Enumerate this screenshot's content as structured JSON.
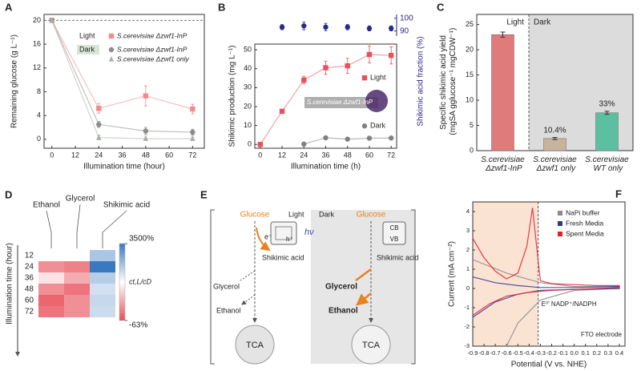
{
  "chart_data": [
    {
      "type": "line",
      "panel_label": "A",
      "xlabel": "Illumination time (hour)",
      "ylabel": "Remaining glucose (g L⁻¹)",
      "x": [
        0,
        24,
        48,
        72
      ],
      "xlim": [
        -4,
        78
      ],
      "xticks": [
        0,
        12,
        24,
        36,
        48,
        60,
        72
      ],
      "ylim": [
        -1.5,
        21
      ],
      "yticks": [
        0,
        4,
        8,
        12,
        16,
        20
      ],
      "hline": 20,
      "legend_groups": [
        {
          "label": "Light",
          "series": [
            0
          ]
        },
        {
          "label": "Dark",
          "series": [
            1,
            2
          ]
        }
      ],
      "series": [
        {
          "name": "S.cerevisiae Δzwf1-InP",
          "color": "#f28b8b",
          "marker": "square",
          "values": [
            20,
            5.2,
            7.3,
            5.1
          ],
          "errors": [
            0,
            0.8,
            1.7,
            0.8
          ]
        },
        {
          "name": "S.cerevisiae Δzwf1-InP",
          "color": "#8c8c8c",
          "marker": "circle",
          "values": [
            20,
            2.5,
            1.4,
            1.2
          ],
          "errors": [
            0,
            0.5,
            0.6,
            0.5
          ]
        },
        {
          "name": "S.cerevisiae Δzwf1 only",
          "color": "#a8b0a8",
          "marker": "triangle",
          "values": [
            20,
            0.3,
            0.1,
            0.1
          ],
          "errors": [
            0,
            0.4,
            0.3,
            0.3
          ]
        }
      ]
    },
    {
      "type": "line",
      "panel_label": "B",
      "xlabel": "Illumination time (h)",
      "ylabel": "Shikimic production (mg L⁻¹)",
      "y2label": "Shikimic acid fraction (%)",
      "annotation": "S.cerevisiae Δzwf1-InP",
      "x": [
        0,
        12,
        24,
        36,
        48,
        60,
        72
      ],
      "xlim": [
        -3,
        75
      ],
      "xticks": [
        0,
        12,
        24,
        36,
        48,
        60,
        72
      ],
      "ylim": [
        -2,
        53
      ],
      "yticks": [
        0,
        10,
        20,
        30,
        40,
        50
      ],
      "y2lim": [
        86,
        103
      ],
      "y2ticks": [
        90,
        100
      ],
      "legend": "inline",
      "series": [
        {
          "name": "Light",
          "color": "#e8505a",
          "marker": "square",
          "values": [
            0,
            17.5,
            34,
            40.5,
            41.5,
            47.5,
            47
          ],
          "errors": [
            0,
            0.6,
            2,
            3.5,
            4,
            4.5,
            4.5
          ]
        },
        {
          "name": "Dark",
          "color": "#808080",
          "marker": "circle",
          "values": [
            null,
            null,
            0.2,
            3.5,
            2.8,
            3.3,
            3.4
          ],
          "errors": [
            null,
            null,
            0.3,
            0.5,
            0.4,
            0.4,
            0.4
          ]
        },
        {
          "color": "#2a2a8a",
          "marker": "circle",
          "axis": "y2",
          "line": false,
          "values": [
            null,
            93,
            94,
            93,
            93,
            92,
            92
          ],
          "errors": [
            null,
            2,
            3,
            3,
            2,
            2,
            2
          ]
        }
      ]
    },
    {
      "type": "bar",
      "panel_label": "C",
      "ylabel": "Specific shikimic acid yield (mgSA gglucose⁻¹ mgCDW⁻¹)",
      "categories": [
        "S.cerevisiae Δzwf1-InP",
        "S.cerevisiae Δzwf1 only",
        "S.cerevisiae WT only"
      ],
      "values": [
        23,
        2.4,
        7.5
      ],
      "errors": [
        0.5,
        0.2,
        0.3
      ],
      "colors": [
        "#e07b7b",
        "#c8b39c",
        "#5cc0a0"
      ],
      "annotations": [
        null,
        "10.4%",
        "33%"
      ],
      "regions": [
        "Light",
        "Dark"
      ],
      "ylim": [
        0,
        27
      ],
      "yticks": [
        0,
        5,
        10,
        15,
        20,
        25
      ]
    },
    {
      "type": "heatmap",
      "panel_label": "D",
      "ylabel": "Illumination time (hour)",
      "columns": [
        "Ethanol",
        "Glycerol",
        "Shikimic acid"
      ],
      "rows": [
        "12",
        "24",
        "36",
        "48",
        "60",
        "72"
      ],
      "values": [
        [
          0,
          0,
          1500
        ],
        [
          -40,
          -45,
          3500
        ],
        [
          -10,
          -30,
          1300
        ],
        [
          -40,
          -50,
          800
        ],
        [
          -55,
          -40,
          1000
        ],
        [
          -50,
          -40,
          900
        ]
      ],
      "zlim": [
        -63,
        3500
      ],
      "zticks": [
        {
          "value": 3500,
          "label": "3500%"
        },
        {
          "value": -63,
          "label": "-63%"
        }
      ],
      "zlabel": "ct,L/cD"
    },
    {
      "type": "line",
      "panel_label": "F",
      "xlabel": "Potential (V vs. NHE)",
      "ylabel": "Current (mA cm⁻²)",
      "xlim": [
        -0.9,
        0.45
      ],
      "xticks": [
        -0.9,
        -0.8,
        -0.7,
        -0.6,
        -0.5,
        -0.4,
        -0.3,
        -0.2,
        -0.1,
        {
          "value": 0,
          "label": "0.0"
        },
        0.1,
        0.2,
        0.3,
        0.4
      ],
      "ylim": [
        -3,
        4.5
      ],
      "yticks": [
        -3,
        -2,
        -1,
        0,
        1,
        2,
        3,
        4
      ],
      "vline": -0.32,
      "vline_label": "E⁰' NADP⁺/NADPH",
      "shade": "#fbe3d3",
      "annotation": "FTO electrode",
      "legend": "upper right",
      "series": [
        {
          "name": "NaPi buffer",
          "color": "#8a8a8a",
          "x": [
            -0.9,
            -0.6,
            -0.3,
            0,
            0.4,
            0.4,
            0,
            -0.3,
            -0.5,
            -0.6
          ],
          "values": [
            1.5,
            0.8,
            0.3,
            0.1,
            0.1,
            0,
            -0.1,
            -0.6,
            -1.8,
            -3
          ]
        },
        {
          "name": "Fresh Media",
          "color": "#2b3990",
          "x": [
            -0.9,
            -0.7,
            -0.5,
            -0.3,
            0,
            0.4,
            0.4,
            0,
            -0.3,
            -0.5,
            -0.7,
            -0.9
          ],
          "values": [
            0.6,
            0.3,
            0.15,
            0.05,
            0.05,
            0.1,
            0,
            -0.05,
            -0.1,
            -0.3,
            -0.7,
            -1.5
          ]
        },
        {
          "name": "Spent Media",
          "color": "#e0202a",
          "x": [
            -0.9,
            -0.8,
            -0.7,
            -0.6,
            -0.5,
            -0.42,
            -0.37,
            -0.33,
            -0.3,
            -0.2,
            0,
            0.2,
            0.4,
            0.4,
            0.2,
            0,
            -0.2,
            -0.4,
            -0.6,
            -0.75,
            -0.85,
            -0.9
          ],
          "values": [
            2.6,
            1.6,
            0.9,
            0.5,
            0.8,
            2.2,
            4.2,
            2,
            0.4,
            0.25,
            0.2,
            0.15,
            0.15,
            0.05,
            0,
            -0.05,
            -0.1,
            -0.2,
            -0.4,
            -0.8,
            -1.2,
            -1.4
          ]
        }
      ]
    }
  ],
  "diagram": {
    "panel_label": "E",
    "light": {
      "title": "Light",
      "glucose": "Glucose",
      "hv": "hν",
      "electron": "e⁻",
      "hole": "h⁺",
      "shikimic": "Shikimic acid",
      "glycerol": "Glycerol",
      "ethanol": "Ethanol",
      "tca": "TCA"
    },
    "dark": {
      "title": "Dark",
      "glucose": "Glucose",
      "cb": "CB",
      "vb": "VB",
      "shikimic": "Shikimic acid",
      "glycerol": "Glycerol",
      "ethanol": "Ethanol",
      "tca": "TCA"
    }
  }
}
